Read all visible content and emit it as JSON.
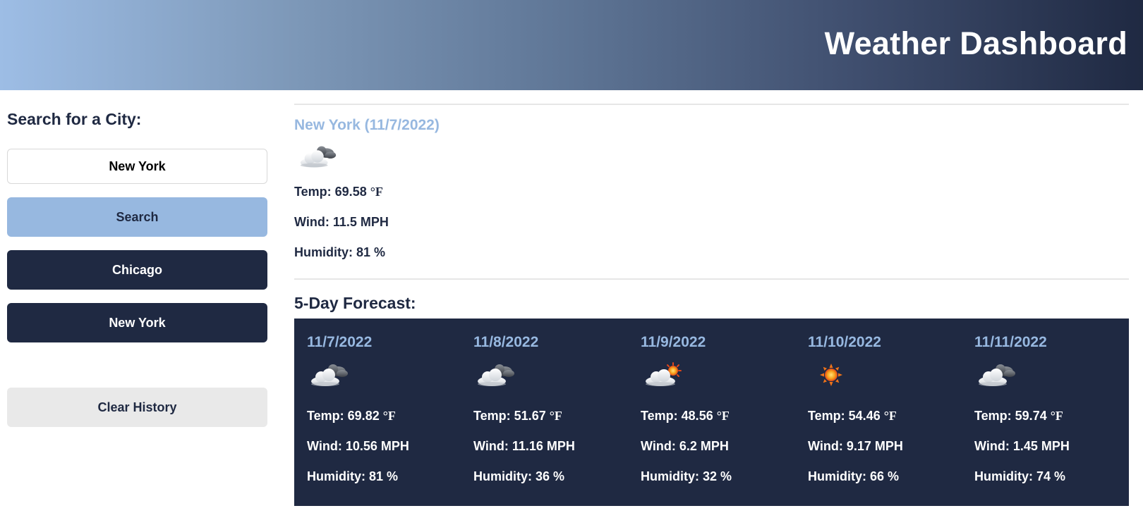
{
  "header": {
    "title": "Weather Dashboard"
  },
  "sidebar": {
    "heading": "Search for a City:",
    "search_input_value": "New York",
    "search_button": "Search",
    "history": [
      "Chicago",
      "New York"
    ],
    "clear_button": "Clear History"
  },
  "current": {
    "title": "New York (11/7/2022)",
    "icon": "cloudy-icon",
    "temp": "Temp: 69.58",
    "temp_unit": "°F",
    "wind": "Wind: 11.5 MPH",
    "humidity": "Humidity: 81 %"
  },
  "forecast": {
    "heading": "5-Day Forecast:",
    "days": [
      {
        "date": "11/7/2022",
        "icon": "cloudy-icon",
        "temp": "Temp: 69.82",
        "wind": "Wind: 10.56 MPH",
        "humidity": "Humidity: 81 %"
      },
      {
        "date": "11/8/2022",
        "icon": "cloudy-icon",
        "temp": "Temp: 51.67",
        "wind": "Wind: 11.16 MPH",
        "humidity": "Humidity: 36 %"
      },
      {
        "date": "11/9/2022",
        "icon": "partly-sunny-icon",
        "temp": "Temp: 48.56",
        "wind": "Wind: 6.2 MPH",
        "humidity": "Humidity: 32 %"
      },
      {
        "date": "11/10/2022",
        "icon": "sun-icon",
        "temp": "Temp: 54.46",
        "wind": "Wind: 9.17 MPH",
        "humidity": "Humidity: 66 %"
      },
      {
        "date": "11/11/2022",
        "icon": "cloudy-icon",
        "temp": "Temp: 59.74",
        "wind": "Wind: 1.45 MPH",
        "humidity": "Humidity: 74 %"
      }
    ],
    "temp_unit": "°F"
  },
  "colors": {
    "navy": "#1f2942",
    "accent_blue": "#97b8e0",
    "light_gray": "#e9e9e9"
  }
}
